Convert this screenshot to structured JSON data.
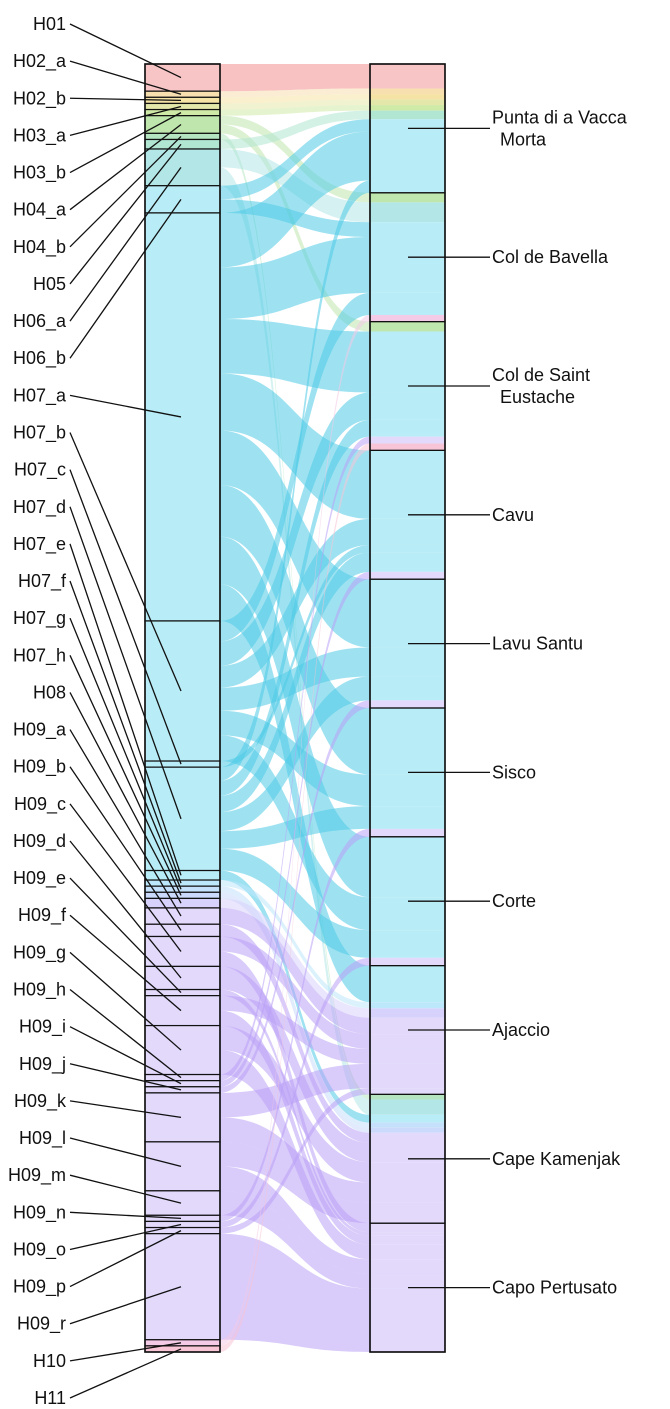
{
  "haplotypes": [
    {
      "label": "H01",
      "color": "#f7c5c5",
      "weight": 2.0
    },
    {
      "label": "H02_a",
      "color": "#f7dfb0",
      "weight": 0.45
    },
    {
      "label": "H02_b",
      "color": "#f5e3a6",
      "weight": 0.45
    },
    {
      "label": "H03_a",
      "color": "#e3e7a9",
      "weight": 0.45
    },
    {
      "label": "H03_b",
      "color": "#cfe9a6",
      "weight": 0.45
    },
    {
      "label": "H04_a",
      "color": "#bfe6ad",
      "weight": 1.3
    },
    {
      "label": "H04_b",
      "color": "#b5e5c0",
      "weight": 0.45
    },
    {
      "label": "H05",
      "color": "#b0e6d2",
      "weight": 0.7
    },
    {
      "label": "H06_a",
      "color": "#b3e6e6",
      "weight": 2.7
    },
    {
      "label": "H06_b",
      "color": "#b8ecf6",
      "weight": 2.0
    },
    {
      "label": "H07_a",
      "color": "#b8ecf6",
      "weight": 30.0
    },
    {
      "label": "H07_b",
      "color": "#b8ecf6",
      "weight": 10.3
    },
    {
      "label": "H07_c",
      "color": "#b8ecf6",
      "weight": 0.45
    },
    {
      "label": "H07_d",
      "color": "#b8ecf6",
      "weight": 7.6
    },
    {
      "label": "H07_e",
      "color": "#b8ecf6",
      "weight": 0.7
    },
    {
      "label": "H07_f",
      "color": "#bde7fb",
      "weight": 0.45
    },
    {
      "label": "H07_g",
      "color": "#c4e0fb",
      "weight": 0.45
    },
    {
      "label": "H07_h",
      "color": "#cbd9fb",
      "weight": 0.45
    },
    {
      "label": "H08",
      "color": "#d7d2fb",
      "weight": 0.7
    },
    {
      "label": "H09_a",
      "color": "#e2d9fb",
      "weight": 1.2
    },
    {
      "label": "H09_b",
      "color": "#e2d9fb",
      "weight": 0.9
    },
    {
      "label": "H09_c",
      "color": "#e2d9fb",
      "weight": 2.2
    },
    {
      "label": "H09_d",
      "color": "#e2d9fb",
      "weight": 1.7
    },
    {
      "label": "H09_e",
      "color": "#e2d9fb",
      "weight": 0.45
    },
    {
      "label": "H09_f",
      "color": "#e2d9fb",
      "weight": 2.2
    },
    {
      "label": "H09_g",
      "color": "#e2d9fb",
      "weight": 3.6
    },
    {
      "label": "H09_h",
      "color": "#e2d9fb",
      "weight": 0.45
    },
    {
      "label": "H09_i",
      "color": "#e2d9fb",
      "weight": 0.45
    },
    {
      "label": "H09_j",
      "color": "#e2d9fb",
      "weight": 0.45
    },
    {
      "label": "H09_k",
      "color": "#e2d9fb",
      "weight": 3.6
    },
    {
      "label": "H09_l",
      "color": "#e2d9fb",
      "weight": 3.6
    },
    {
      "label": "H09_m",
      "color": "#e2d9fb",
      "weight": 1.8
    },
    {
      "label": "H09_n",
      "color": "#e2d9fb",
      "weight": 0.45
    },
    {
      "label": "H09_o",
      "color": "#e2d9fb",
      "weight": 0.45
    },
    {
      "label": "H09_p",
      "color": "#e2d9fb",
      "weight": 0.45
    },
    {
      "label": "H09_r",
      "color": "#e2d9fb",
      "weight": 7.8
    },
    {
      "label": "H10",
      "color": "#f3cbe6",
      "weight": 0.45
    },
    {
      "label": "H11",
      "color": "#f7c5d5",
      "weight": 0.45
    }
  ],
  "locations": [
    {
      "label": "Punta di a Vacca Morta",
      "weight": 10
    },
    {
      "label": "Col de Bavella",
      "weight": 10
    },
    {
      "label": "Col de Saint Eustache",
      "weight": 10
    },
    {
      "label": "Cavu",
      "weight": 10
    },
    {
      "label": "Lavu Santu",
      "weight": 10
    },
    {
      "label": "Sisco",
      "weight": 10
    },
    {
      "label": "Corte",
      "weight": 10
    },
    {
      "label": "Ajaccio",
      "weight": 10
    },
    {
      "label": "Cape Kamenjak",
      "weight": 10
    },
    {
      "label": "Capo Pertusato",
      "weight": 10
    }
  ],
  "flows": [
    [
      0,
      0,
      2.0
    ],
    [
      1,
      0,
      0.45
    ],
    [
      2,
      0,
      0.45
    ],
    [
      3,
      0,
      0.45
    ],
    [
      4,
      0,
      0.45
    ],
    [
      5,
      1,
      0.65
    ],
    [
      5,
      2,
      0.65
    ],
    [
      6,
      8,
      0.45
    ],
    [
      7,
      0,
      0.7
    ],
    [
      8,
      1,
      1.35
    ],
    [
      8,
      8,
      1.35
    ],
    [
      9,
      0,
      1.0
    ],
    [
      9,
      1,
      1.0
    ],
    [
      10,
      0,
      4.0
    ],
    [
      10,
      1,
      3.8
    ],
    [
      10,
      2,
      4.0
    ],
    [
      10,
      3,
      4.2
    ],
    [
      10,
      4,
      4.0
    ],
    [
      10,
      5,
      3.8
    ],
    [
      10,
      6,
      3.5
    ],
    [
      10,
      7,
      2.7
    ],
    [
      11,
      1,
      1.5
    ],
    [
      11,
      2,
      1.8
    ],
    [
      11,
      3,
      1.6
    ],
    [
      11,
      4,
      1.7
    ],
    [
      11,
      5,
      1.8
    ],
    [
      11,
      6,
      1.9
    ],
    [
      12,
      3,
      0.45
    ],
    [
      13,
      0,
      1.0
    ],
    [
      13,
      2,
      1.1
    ],
    [
      13,
      3,
      1.2
    ],
    [
      13,
      4,
      1.4
    ],
    [
      13,
      5,
      1.3
    ],
    [
      13,
      6,
      1.6
    ],
    [
      14,
      8,
      0.7
    ],
    [
      15,
      7,
      0.45
    ],
    [
      16,
      8,
      0.45
    ],
    [
      17,
      8,
      0.45
    ],
    [
      18,
      7,
      0.7
    ],
    [
      19,
      7,
      1.2
    ],
    [
      20,
      8,
      0.9
    ],
    [
      21,
      7,
      1.1
    ],
    [
      21,
      9,
      1.1
    ],
    [
      22,
      8,
      1.7
    ],
    [
      23,
      9,
      0.45
    ],
    [
      24,
      7,
      1.1
    ],
    [
      24,
      9,
      1.1
    ],
    [
      25,
      8,
      1.8
    ],
    [
      25,
      9,
      1.8
    ],
    [
      26,
      2,
      0.45
    ],
    [
      27,
      3,
      0.45
    ],
    [
      28,
      4,
      0.45
    ],
    [
      29,
      7,
      1.8
    ],
    [
      29,
      8,
      1.8
    ],
    [
      30,
      8,
      1.8
    ],
    [
      30,
      9,
      1.8
    ],
    [
      31,
      9,
      1.8
    ],
    [
      32,
      5,
      0.45
    ],
    [
      33,
      6,
      0.45
    ],
    [
      34,
      7,
      0.45
    ],
    [
      35,
      9,
      7.8
    ],
    [
      36,
      1,
      0.45
    ],
    [
      37,
      2,
      0.45
    ]
  ]
}
